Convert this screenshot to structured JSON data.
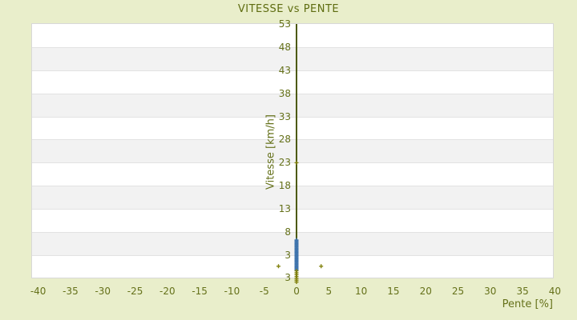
{
  "colors": {
    "background": "#e9eecb",
    "text_olive": "#65711a",
    "title_olive": "#5e6c10",
    "axis_line": "#4d5a05",
    "band_light": "#ffffff",
    "band_dark": "#f2f2f2",
    "gridline": "#e2e2e2",
    "plot_border": "#d8d8d8",
    "series_blue": "#3f74ad",
    "series_olive": "#82820e"
  },
  "chart_data": {
    "type": "scatter",
    "title": "VITESSE vs PENTE",
    "xlabel": "Pente [%]",
    "ylabel": "Vitesse [km/h]",
    "xticks": [
      -40,
      -35,
      -30,
      -25,
      -20,
      -15,
      -10,
      -5,
      0,
      5,
      10,
      15,
      20,
      25,
      30,
      35,
      40
    ],
    "yticks": [
      53,
      48,
      43,
      38,
      33,
      28,
      23,
      18,
      13,
      8,
      3
    ],
    "y_min_label": "3",
    "xlim": [
      -40.95,
      39.7
    ],
    "ylim": [
      -1.85,
      53
    ],
    "grid": "horizontal-bands",
    "legend": "none",
    "series": [
      {
        "name": "vitesse-points-bleus",
        "color": "#3f74ad",
        "marker": "plus",
        "points": [
          [
            0,
            6.3
          ],
          [
            0,
            6.1
          ],
          [
            0,
            5.9
          ],
          [
            0,
            5.7
          ],
          [
            0,
            5.5
          ],
          [
            0,
            5.3
          ],
          [
            0,
            5.1
          ],
          [
            0,
            4.9
          ],
          [
            0,
            4.7
          ],
          [
            0,
            4.5
          ],
          [
            0,
            4.3
          ],
          [
            0,
            4.1
          ],
          [
            0,
            3.9
          ],
          [
            0,
            3.7
          ],
          [
            0,
            3.5
          ],
          [
            0,
            3.3
          ],
          [
            0,
            3.1
          ],
          [
            0,
            2.9
          ],
          [
            0,
            2.7
          ],
          [
            0,
            2.5
          ],
          [
            0,
            2.3
          ],
          [
            0,
            2.1
          ],
          [
            0,
            1.9
          ],
          [
            0,
            1.7
          ],
          [
            0,
            1.5
          ],
          [
            0,
            1.3
          ],
          [
            0,
            1.1
          ],
          [
            0,
            0.9
          ],
          [
            0,
            0.7
          ],
          [
            0,
            0.5
          ],
          [
            0,
            0.3
          ],
          [
            0,
            0.1
          ],
          [
            0,
            -0.1
          ],
          [
            0,
            -0.3
          ]
        ]
      },
      {
        "name": "vitesse-points-olive",
        "color": "#82820e",
        "marker": "plus",
        "points": [
          [
            0,
            23
          ],
          [
            -2.8,
            0.6
          ],
          [
            3.8,
            0.6
          ],
          [
            0,
            -0.4
          ],
          [
            0,
            -0.8
          ],
          [
            0,
            -1.2
          ],
          [
            0,
            -1.6
          ],
          [
            0,
            -2.0
          ],
          [
            0,
            -2.4
          ],
          [
            0,
            -2.8
          ]
        ]
      }
    ]
  }
}
